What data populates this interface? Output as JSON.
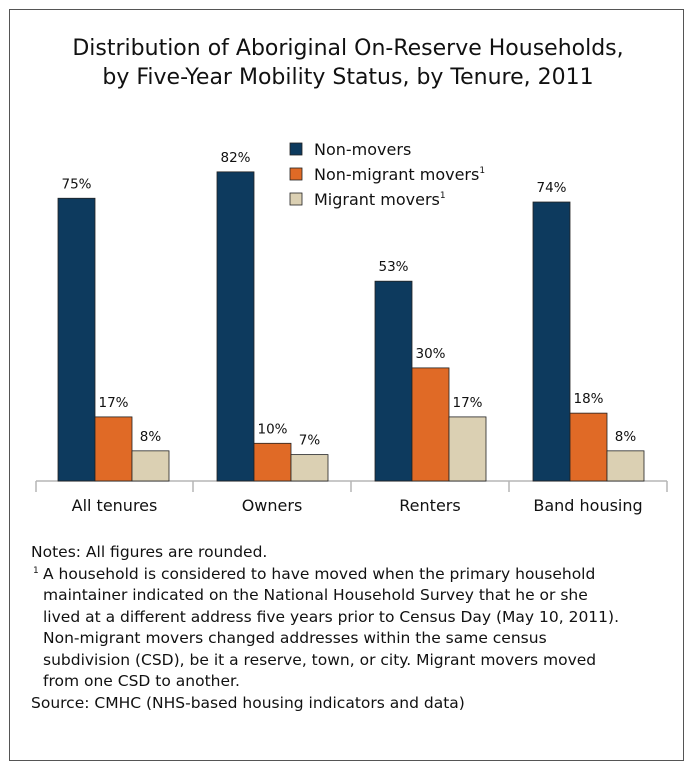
{
  "title_lines": [
    "Distribution of Aboriginal On-Reserve Households,",
    "by Five-Year Mobility Status, by Tenure, 2011"
  ],
  "chart_data": {
    "type": "bar",
    "title": "Distribution of Aboriginal On-Reserve Households, by Five-Year Mobility Status, by Tenure, 2011",
    "categories": [
      "All tenures",
      "Owners",
      "Renters",
      "Band housing"
    ],
    "series": [
      {
        "name": "Non-movers",
        "sup": "",
        "values": [
          75,
          82,
          53,
          74
        ],
        "color": "#0d3a5e"
      },
      {
        "name": "Non-migrant movers",
        "sup": "1",
        "values": [
          17,
          10,
          30,
          18
        ],
        "color": "#e06a26"
      },
      {
        "name": "Migrant movers",
        "sup": "1",
        "values": [
          8,
          7,
          17,
          8
        ],
        "color": "#dbd0b3"
      }
    ],
    "value_suffix": "%",
    "ylim": [
      0,
      100
    ],
    "legend": "top-center",
    "grid": false
  },
  "notes": {
    "line1": "Notes: All figures are rounded.",
    "footnote_marker": "1",
    "footnote_lines": [
      "A household is considered to have moved when the primary household",
      "maintainer indicated on the National Household Survey that he or she",
      "lived at a different address five years prior to Census Day (May 10, 2011).",
      "Non-migrant movers changed addresses within the same census",
      "subdivision (CSD), be it a reserve, town, or city. Migrant movers moved",
      "from one CSD to another."
    ],
    "source": "Source: CMHC (NHS-based housing indicators and data)"
  }
}
